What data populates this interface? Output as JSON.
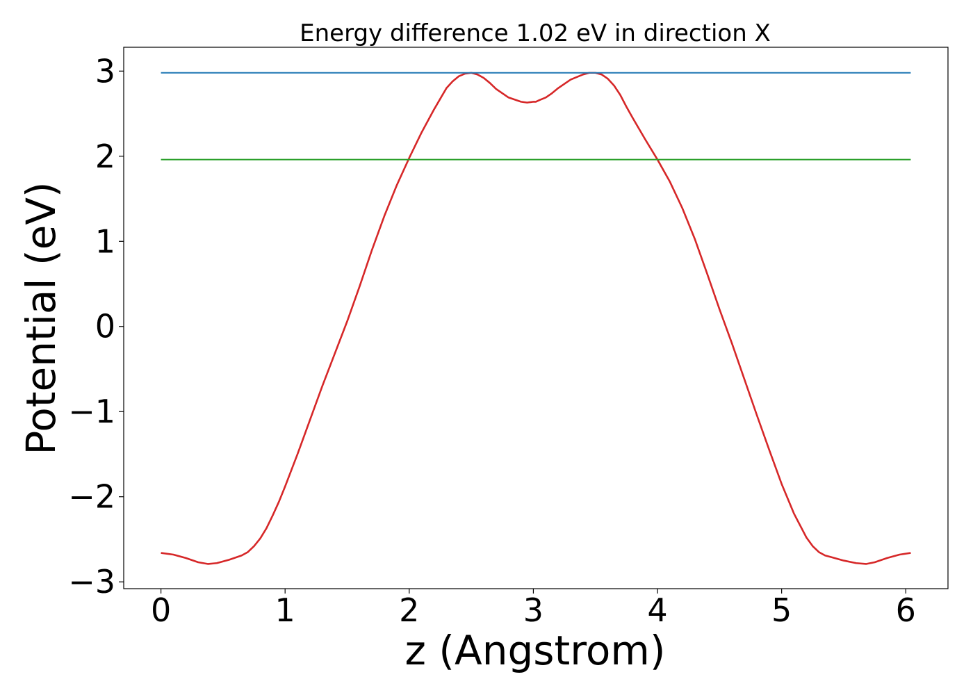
{
  "chart_data": {
    "type": "line",
    "title": "Energy difference 1.02 eV in direction X",
    "xlabel": "z (Angstrom)",
    "ylabel": "Potential (eV)",
    "xlim": [
      -0.3,
      6.34
    ],
    "ylim": [
      -3.08,
      3.28
    ],
    "xticks": [
      0,
      1,
      2,
      3,
      4,
      5,
      6
    ],
    "xtick_labels": [
      "0",
      "1",
      "2",
      "3",
      "4",
      "5",
      "6"
    ],
    "yticks": [
      -3,
      -2,
      -1,
      0,
      1,
      2,
      3
    ],
    "ytick_labels": [
      "−3",
      "−2",
      "−1",
      "0",
      "1",
      "2",
      "3"
    ],
    "grid": false,
    "series": [
      {
        "color": "#d62728",
        "x": [
          0.0,
          0.1,
          0.2,
          0.3,
          0.38,
          0.45,
          0.55,
          0.65,
          0.7,
          0.75,
          0.8,
          0.85,
          0.9,
          0.95,
          1.0,
          1.1,
          1.2,
          1.3,
          1.4,
          1.5,
          1.6,
          1.7,
          1.8,
          1.9,
          2.0,
          2.1,
          2.2,
          2.3,
          2.35,
          2.4,
          2.45,
          2.5,
          2.55,
          2.6,
          2.65,
          2.7,
          2.8,
          2.9,
          2.95,
          3.0,
          3.02,
          3.05,
          3.1,
          3.15,
          3.2,
          3.3,
          3.4,
          3.45,
          3.5,
          3.55,
          3.6,
          3.65,
          3.7,
          3.75,
          3.8,
          3.9,
          4.0,
          4.1,
          4.2,
          4.3,
          4.4,
          4.5,
          4.6,
          4.7,
          4.8,
          4.9,
          5.0,
          5.1,
          5.2,
          5.25,
          5.3,
          5.35,
          5.4,
          5.5,
          5.6,
          5.68,
          5.75,
          5.85,
          5.95,
          6.04
        ],
        "y": [
          -2.66,
          -2.68,
          -2.72,
          -2.77,
          -2.79,
          -2.78,
          -2.74,
          -2.69,
          -2.65,
          -2.58,
          -2.49,
          -2.37,
          -2.22,
          -2.06,
          -1.88,
          -1.5,
          -1.1,
          -0.7,
          -0.32,
          0.06,
          0.47,
          0.9,
          1.3,
          1.66,
          1.98,
          2.28,
          2.55,
          2.8,
          2.88,
          2.94,
          2.97,
          2.98,
          2.96,
          2.92,
          2.86,
          2.79,
          2.69,
          2.64,
          2.63,
          2.64,
          2.64,
          2.66,
          2.69,
          2.74,
          2.8,
          2.9,
          2.96,
          2.98,
          2.98,
          2.96,
          2.91,
          2.83,
          2.72,
          2.58,
          2.45,
          2.2,
          1.96,
          1.7,
          1.39,
          1.03,
          0.62,
          0.2,
          -0.2,
          -0.62,
          -1.04,
          -1.45,
          -1.85,
          -2.2,
          -2.48,
          -2.58,
          -2.65,
          -2.69,
          -2.71,
          -2.75,
          -2.78,
          -2.79,
          -2.77,
          -2.72,
          -2.68,
          -2.66
        ]
      },
      {
        "color": "#1f77b4",
        "x": [
          0.0,
          6.04
        ],
        "y": [
          2.98,
          2.98
        ]
      },
      {
        "color": "#2ca02c",
        "x": [
          0.0,
          6.04
        ],
        "y": [
          1.96,
          1.96
        ]
      }
    ]
  }
}
